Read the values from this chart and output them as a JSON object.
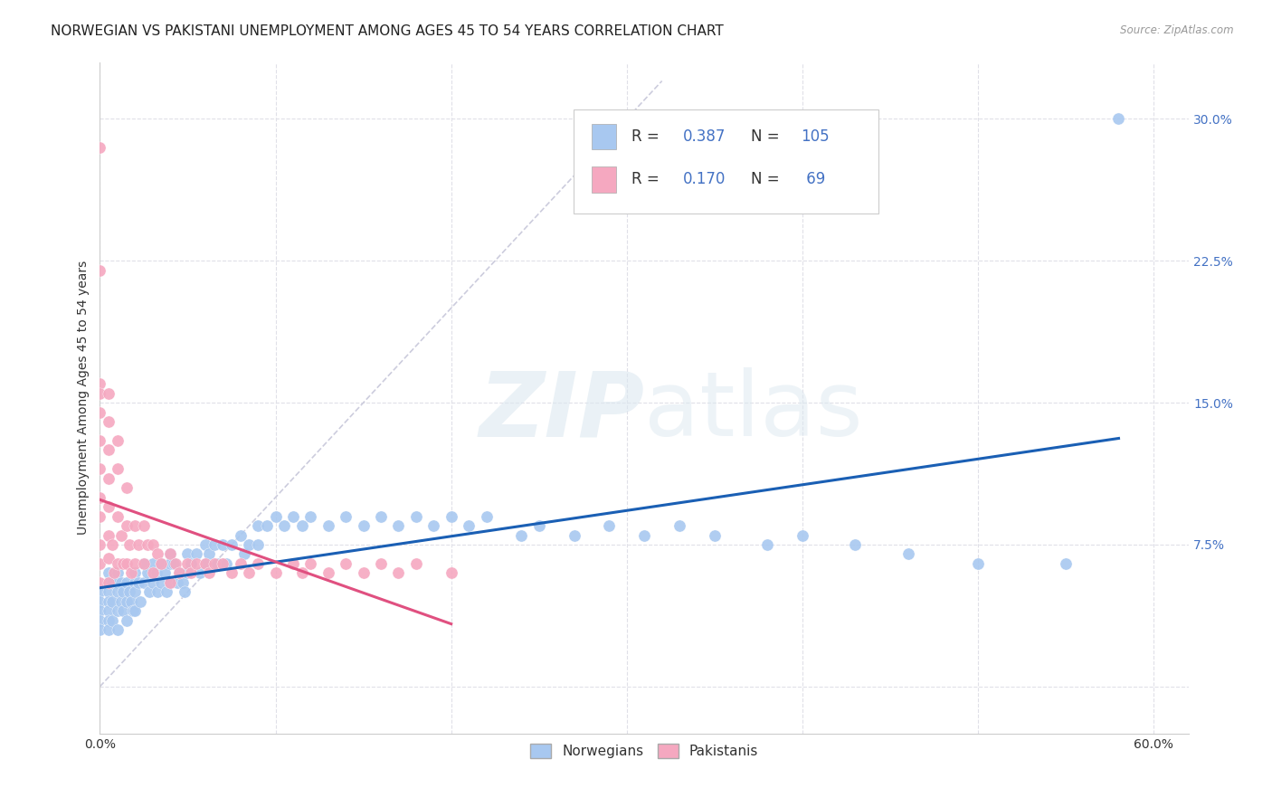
{
  "title": "NORWEGIAN VS PAKISTANI UNEMPLOYMENT AMONG AGES 45 TO 54 YEARS CORRELATION CHART",
  "source": "Source: ZipAtlas.com",
  "ylabel": "Unemployment Among Ages 45 to 54 years",
  "xlim": [
    0.0,
    0.62
  ],
  "ylim": [
    -0.025,
    0.33
  ],
  "xticks": [
    0.0,
    0.1,
    0.2,
    0.3,
    0.4,
    0.5,
    0.6
  ],
  "xtick_labels": [
    "0.0%",
    "",
    "",
    "",
    "",
    "",
    "60.0%"
  ],
  "ytick_labels": [
    "",
    "7.5%",
    "15.0%",
    "22.5%",
    "30.0%"
  ],
  "ytick_positions": [
    0.0,
    0.075,
    0.15,
    0.225,
    0.3
  ],
  "norwegian_color": "#a8c8f0",
  "pakistani_color": "#f5a8c0",
  "norwegian_line_color": "#1a5fb4",
  "pakistani_line_color": "#e05080",
  "diagonal_color": "#ccccdd",
  "watermark_color": "#dce8f0",
  "background_color": "#ffffff",
  "grid_color": "#e0e0e8",
  "title_fontsize": 11,
  "axis_fontsize": 10,
  "legend_color": "#4472c4",
  "norwegian_x": [
    0.0,
    0.0,
    0.0,
    0.0,
    0.0,
    0.005,
    0.005,
    0.005,
    0.005,
    0.005,
    0.005,
    0.005,
    0.007,
    0.007,
    0.007,
    0.01,
    0.01,
    0.01,
    0.01,
    0.01,
    0.012,
    0.012,
    0.013,
    0.013,
    0.015,
    0.015,
    0.015,
    0.017,
    0.018,
    0.019,
    0.02,
    0.02,
    0.02,
    0.02,
    0.022,
    0.023,
    0.025,
    0.025,
    0.027,
    0.028,
    0.03,
    0.03,
    0.032,
    0.033,
    0.035,
    0.035,
    0.037,
    0.038,
    0.04,
    0.04,
    0.04,
    0.042,
    0.044,
    0.045,
    0.047,
    0.048,
    0.05,
    0.05,
    0.052,
    0.055,
    0.057,
    0.06,
    0.06,
    0.062,
    0.065,
    0.067,
    0.07,
    0.072,
    0.075,
    0.08,
    0.082,
    0.085,
    0.09,
    0.09,
    0.095,
    0.1,
    0.105,
    0.11,
    0.115,
    0.12,
    0.13,
    0.14,
    0.15,
    0.16,
    0.17,
    0.18,
    0.19,
    0.2,
    0.21,
    0.22,
    0.24,
    0.25,
    0.27,
    0.29,
    0.31,
    0.33,
    0.35,
    0.38,
    0.4,
    0.43,
    0.46,
    0.5,
    0.55,
    0.58
  ],
  "norwegian_y": [
    0.05,
    0.045,
    0.04,
    0.035,
    0.03,
    0.06,
    0.055,
    0.05,
    0.045,
    0.04,
    0.035,
    0.03,
    0.055,
    0.045,
    0.035,
    0.06,
    0.055,
    0.05,
    0.04,
    0.03,
    0.055,
    0.045,
    0.05,
    0.04,
    0.055,
    0.045,
    0.035,
    0.05,
    0.045,
    0.04,
    0.06,
    0.055,
    0.05,
    0.04,
    0.055,
    0.045,
    0.065,
    0.055,
    0.06,
    0.05,
    0.065,
    0.055,
    0.06,
    0.05,
    0.065,
    0.055,
    0.06,
    0.05,
    0.07,
    0.065,
    0.055,
    0.065,
    0.055,
    0.06,
    0.055,
    0.05,
    0.07,
    0.06,
    0.065,
    0.07,
    0.06,
    0.075,
    0.065,
    0.07,
    0.075,
    0.065,
    0.075,
    0.065,
    0.075,
    0.08,
    0.07,
    0.075,
    0.085,
    0.075,
    0.085,
    0.09,
    0.085,
    0.09,
    0.085,
    0.09,
    0.085,
    0.09,
    0.085,
    0.09,
    0.085,
    0.09,
    0.085,
    0.09,
    0.085,
    0.09,
    0.08,
    0.085,
    0.08,
    0.085,
    0.08,
    0.085,
    0.08,
    0.075,
    0.08,
    0.075,
    0.07,
    0.065,
    0.065,
    0.3
  ],
  "pakistani_x": [
    0.0,
    0.0,
    0.0,
    0.0,
    0.0,
    0.0,
    0.0,
    0.0,
    0.0,
    0.0,
    0.0,
    0.0,
    0.005,
    0.005,
    0.005,
    0.005,
    0.005,
    0.005,
    0.005,
    0.005,
    0.007,
    0.008,
    0.01,
    0.01,
    0.01,
    0.01,
    0.012,
    0.013,
    0.015,
    0.015,
    0.015,
    0.017,
    0.018,
    0.02,
    0.02,
    0.022,
    0.025,
    0.025,
    0.027,
    0.03,
    0.03,
    0.033,
    0.035,
    0.04,
    0.04,
    0.043,
    0.045,
    0.05,
    0.052,
    0.055,
    0.06,
    0.062,
    0.065,
    0.07,
    0.075,
    0.08,
    0.085,
    0.09,
    0.1,
    0.11,
    0.115,
    0.12,
    0.13,
    0.14,
    0.15,
    0.16,
    0.17,
    0.18,
    0.2
  ],
  "pakistani_y": [
    0.285,
    0.22,
    0.16,
    0.155,
    0.145,
    0.13,
    0.115,
    0.1,
    0.09,
    0.075,
    0.065,
    0.055,
    0.155,
    0.14,
    0.125,
    0.11,
    0.095,
    0.08,
    0.068,
    0.055,
    0.075,
    0.06,
    0.13,
    0.115,
    0.09,
    0.065,
    0.08,
    0.065,
    0.105,
    0.085,
    0.065,
    0.075,
    0.06,
    0.085,
    0.065,
    0.075,
    0.085,
    0.065,
    0.075,
    0.075,
    0.06,
    0.07,
    0.065,
    0.07,
    0.055,
    0.065,
    0.06,
    0.065,
    0.06,
    0.065,
    0.065,
    0.06,
    0.065,
    0.065,
    0.06,
    0.065,
    0.06,
    0.065,
    0.06,
    0.065,
    0.06,
    0.065,
    0.06,
    0.065,
    0.06,
    0.065,
    0.06,
    0.065,
    0.06
  ]
}
